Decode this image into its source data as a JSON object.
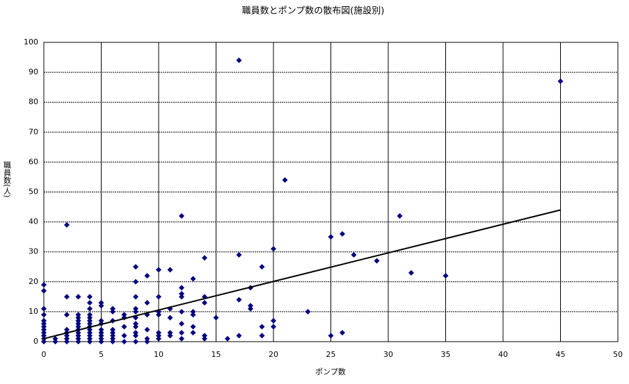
{
  "chart_data": {
    "type": "scatter",
    "title": "職員数とポンプ数の散布図(施設別)",
    "x_label": "ポンプ数",
    "y_label": "職員数(人)",
    "xlim": [
      0,
      50
    ],
    "xticks": [
      0,
      5,
      10,
      15,
      20,
      25,
      30,
      35,
      40,
      45,
      50
    ],
    "ylim": [
      0,
      100
    ],
    "yticks": [
      0,
      10,
      20,
      30,
      40,
      50,
      60,
      70,
      80,
      90,
      100
    ],
    "grid": true,
    "series": [
      {
        "color": "#000080",
        "x": [
          0,
          0,
          0,
          0,
          0,
          0,
          0,
          0,
          0,
          0,
          0,
          0,
          1,
          1,
          2,
          2,
          2,
          2,
          2,
          2,
          2,
          2,
          3,
          3,
          3,
          3,
          3,
          3,
          3,
          3,
          3,
          3,
          3,
          4,
          4,
          4,
          4,
          4,
          4,
          4,
          4,
          4,
          4,
          4,
          4,
          4,
          5,
          5,
          5,
          5,
          5,
          5,
          5,
          5,
          5,
          6,
          6,
          6,
          6,
          6,
          6,
          6,
          6,
          7,
          7,
          7,
          7,
          7,
          8,
          8,
          8,
          8,
          8,
          8,
          8,
          8,
          8,
          8,
          8,
          9,
          9,
          9,
          9,
          9,
          9,
          10,
          10,
          10,
          10,
          10,
          10,
          10,
          11,
          11,
          11,
          11,
          11,
          12,
          12,
          12,
          12,
          12,
          12,
          12,
          12,
          13,
          13,
          13,
          13,
          13,
          14,
          14,
          14,
          14,
          14,
          15,
          16,
          17,
          17,
          17,
          17,
          18,
          18,
          18,
          19,
          19,
          19,
          20,
          20,
          20,
          21,
          23,
          25,
          25,
          26,
          26,
          27,
          29,
          31,
          32,
          35,
          45
        ],
        "values": [
          19,
          17,
          11,
          9,
          7,
          6,
          5,
          4,
          3,
          2,
          1,
          0,
          0,
          1,
          39,
          15,
          9,
          4,
          3,
          2,
          1,
          0,
          15,
          9,
          8,
          7,
          6,
          5,
          4,
          3,
          2,
          1,
          0,
          15,
          13,
          11,
          9,
          8,
          7,
          6,
          5,
          4,
          3,
          2,
          1,
          0,
          13,
          12,
          7,
          6,
          4,
          3,
          2,
          1,
          0,
          11,
          10,
          7,
          4,
          3,
          2,
          1,
          0,
          9,
          8,
          5,
          2,
          0,
          25,
          20,
          15,
          11,
          10,
          8,
          6,
          5,
          3,
          2,
          0,
          22,
          13,
          9,
          4,
          1,
          0,
          24,
          15,
          10,
          9,
          3,
          2,
          1,
          24,
          11,
          8,
          3,
          2,
          42,
          18,
          16,
          15,
          10,
          6,
          3,
          1,
          21,
          10,
          9,
          5,
          3,
          28,
          15,
          13,
          2,
          1,
          8,
          1,
          94,
          29,
          14,
          2,
          18,
          12,
          11,
          25,
          5,
          2,
          31,
          7,
          5,
          54,
          10,
          35,
          2,
          36,
          3,
          29,
          27,
          42,
          23,
          22,
          87
        ]
      }
    ],
    "trendline": {
      "color": "#000000",
      "x": [
        0,
        45
      ],
      "values": [
        1,
        44
      ]
    }
  }
}
